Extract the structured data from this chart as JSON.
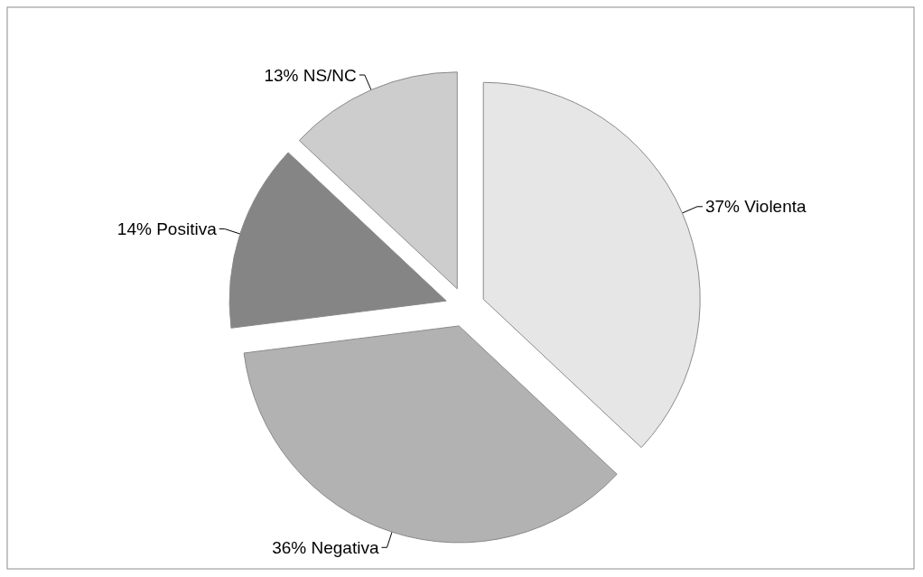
{
  "chart_data": {
    "type": "pie",
    "categories": [
      "Violenta",
      "Negativa",
      "Positiva",
      "NS/NC"
    ],
    "values": [
      37,
      36,
      14,
      13
    ],
    "value_labels": [
      "37%",
      "36%",
      "14%",
      "13%"
    ],
    "colors": [
      "#e6e6e6",
      "#b2b2b2",
      "#858585",
      "#cdcdcd"
    ]
  }
}
